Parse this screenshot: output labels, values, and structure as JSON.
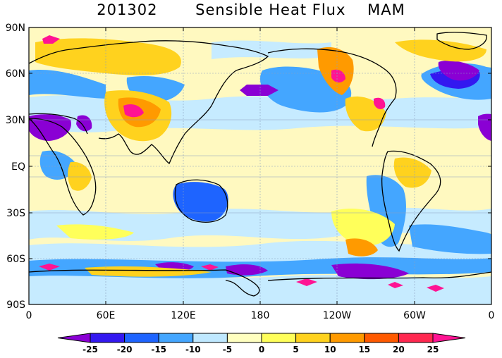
{
  "title": {
    "date": "201302",
    "variable": "Sensible Heat Flux",
    "season": "MAM"
  },
  "map": {
    "projection": "cylindrical equidistant",
    "lon_range": [
      0,
      360
    ],
    "lat_range": [
      -90,
      90
    ],
    "grid": true,
    "coastlines": true
  },
  "axes": {
    "x_ticks": [
      "0",
      "60E",
      "120E",
      "180",
      "120W",
      "60W",
      "0"
    ],
    "y_ticks": [
      "90N",
      "60N",
      "30N",
      "EQ",
      "30S",
      "60S",
      "90S"
    ]
  },
  "colorbar": {
    "labels": [
      "-25",
      "-20",
      "-15",
      "-10",
      "-5",
      "0",
      "5",
      "10",
      "15",
      "20",
      "25"
    ],
    "colors": [
      "#8a00d4",
      "#3318f0",
      "#1e64ff",
      "#44a6ff",
      "#bfe8ff",
      "#ffffbf",
      "#ffff5a",
      "#ffd21e",
      "#ff9a00",
      "#ff5a00",
      "#ff2850",
      "#ff1493"
    ]
  },
  "colors": {
    "ocean_neutral": "#fff9c0",
    "light_blue": "#c6ebff"
  }
}
